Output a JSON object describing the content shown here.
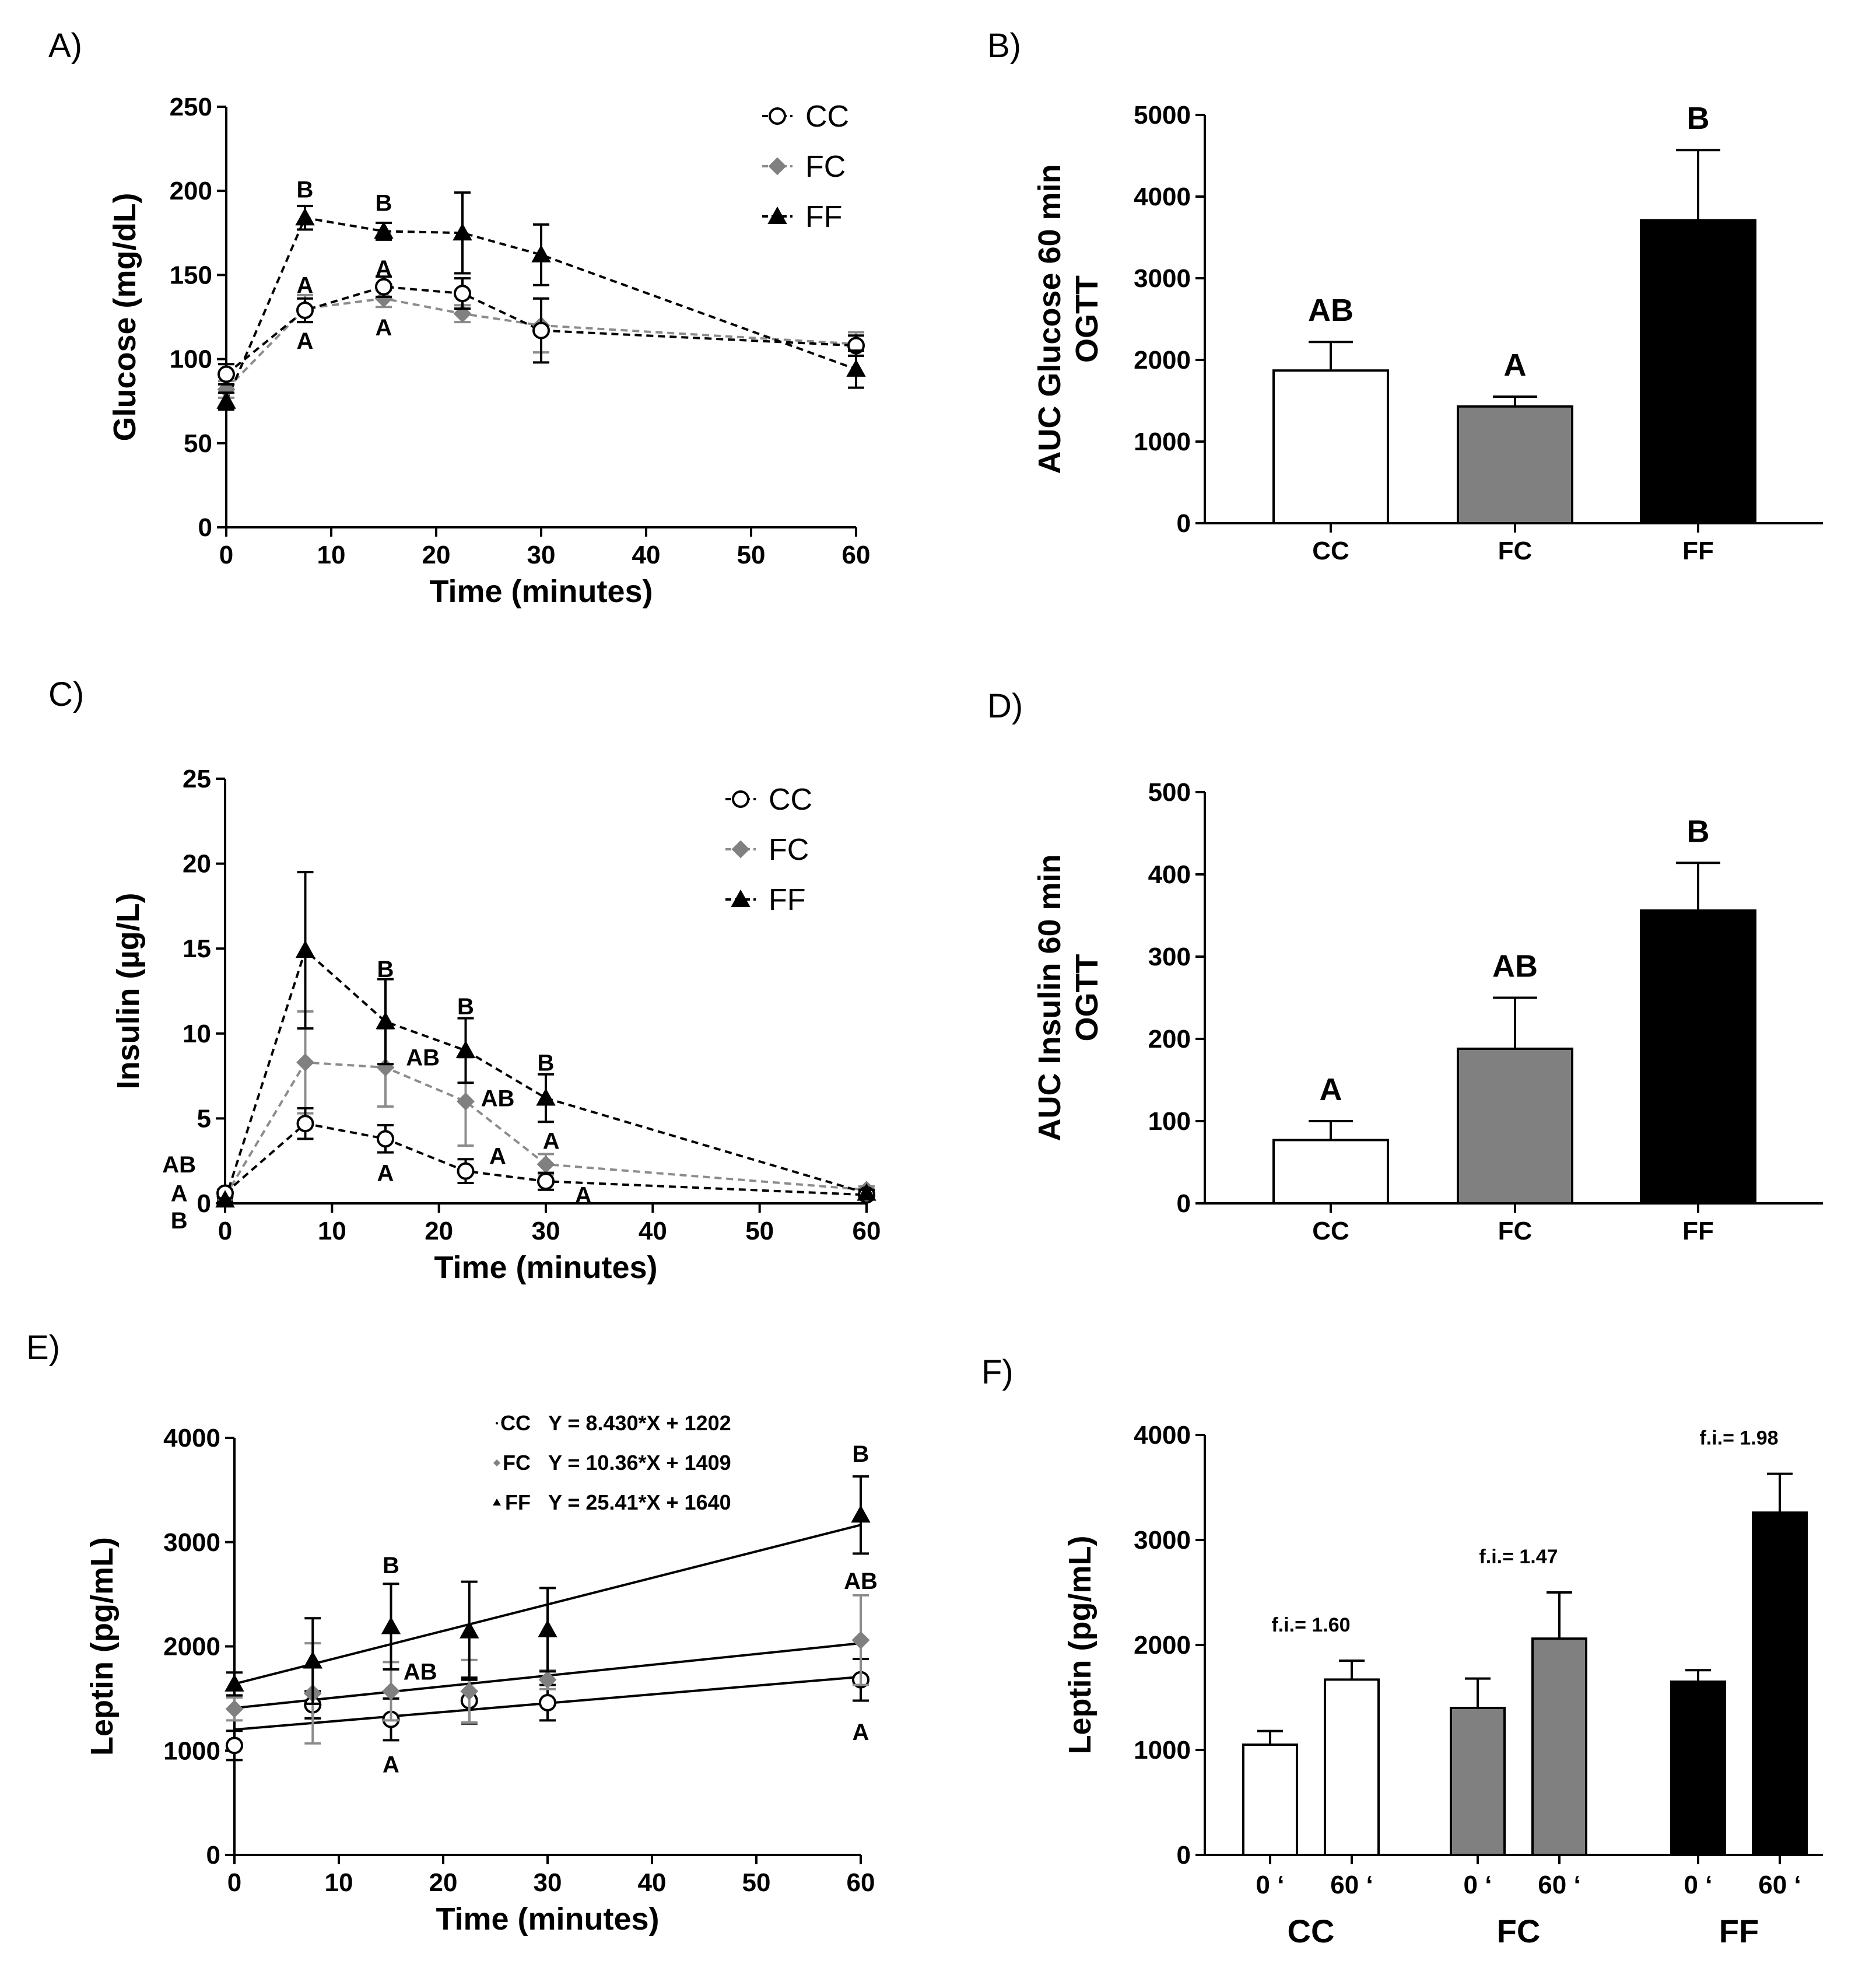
{
  "colors": {
    "CC": "#ffffff",
    "FC": "#808080",
    "FF": "#000000",
    "FC_line": "#8c8c8c"
  },
  "chart_data": [
    {
      "panel": "A)",
      "type": "line",
      "xlabel": "Time (minutes)",
      "ylabel": "Glucose (mg/dL)",
      "xlim": [
        0,
        60
      ],
      "ylim": [
        0,
        250
      ],
      "xticks": [
        0,
        10,
        20,
        30,
        40,
        50,
        60
      ],
      "yticks": [
        0,
        50,
        100,
        150,
        200,
        250
      ],
      "legend": [
        "CC",
        "FC",
        "FF"
      ],
      "x": [
        0,
        7.5,
        15,
        22.5,
        30,
        60
      ],
      "series": [
        {
          "name": "CC",
          "values": [
            91,
            129,
            143,
            139,
            117,
            108
          ],
          "errors": [
            6,
            7,
            6,
            9,
            19,
            6
          ]
        },
        {
          "name": "FC",
          "values": [
            82,
            130,
            136,
            127,
            120,
            109
          ],
          "errors": [
            5,
            8,
            5,
            5,
            16,
            7
          ]
        },
        {
          "name": "FF",
          "values": [
            75,
            184,
            176,
            175,
            162,
            94
          ],
          "errors": [
            5,
            7,
            5,
            24,
            18,
            11
          ]
        }
      ],
      "annotations": [
        {
          "text": "B",
          "x": 7.5,
          "y": 201
        },
        {
          "text": "B",
          "x": 15,
          "y": 193
        },
        {
          "text": "A",
          "x": 7.5,
          "y": 144
        },
        {
          "text": "A",
          "x": 15,
          "y": 154
        },
        {
          "text": "A",
          "x": 7.5,
          "y": 111
        },
        {
          "text": "A",
          "x": 15,
          "y": 119
        }
      ]
    },
    {
      "panel": "B)",
      "type": "bar",
      "ylabel": [
        "AUC Glucose 60 min",
        "OGTT"
      ],
      "categories": [
        "CC",
        "FC",
        "FF"
      ],
      "values": [
        1870,
        1430,
        3710
      ],
      "errors": [
        350,
        120,
        860
      ],
      "ylim": [
        0,
        5000
      ],
      "yticks": [
        0,
        1000,
        2000,
        3000,
        4000,
        5000
      ],
      "sig_letters": [
        "AB",
        "A",
        "B"
      ]
    },
    {
      "panel": "C)",
      "type": "line",
      "xlabel": "Time (minutes)",
      "ylabel": "Insulin (µg/L)",
      "xlim": [
        0,
        60
      ],
      "ylim": [
        0,
        25
      ],
      "xticks": [
        0,
        10,
        20,
        30,
        40,
        50,
        60
      ],
      "yticks": [
        0,
        5,
        10,
        15,
        20,
        25
      ],
      "legend": [
        "CC",
        "FC",
        "FF"
      ],
      "x": [
        0,
        7.5,
        15,
        22.5,
        30,
        60
      ],
      "series": [
        {
          "name": "CC",
          "values": [
            0.6,
            4.7,
            3.8,
            1.9,
            1.3,
            0.5
          ],
          "errors": [
            0.2,
            0.9,
            0.8,
            0.7,
            0.5,
            0.2
          ]
        },
        {
          "name": "FC",
          "values": [
            0.4,
            8.3,
            8.0,
            6.0,
            2.3,
            0.8
          ],
          "errors": [
            0.2,
            3.0,
            2.3,
            2.6,
            0.6,
            0.2
          ]
        },
        {
          "name": "FF",
          "values": [
            0.2,
            14.9,
            10.7,
            9.0,
            6.2,
            0.6
          ],
          "errors": [
            0.1,
            4.6,
            2.5,
            1.9,
            1.4,
            0.2
          ]
        }
      ],
      "annotations": [
        {
          "text": "B",
          "x": 15,
          "y": 13.8
        },
        {
          "text": "B",
          "x": 22.5,
          "y": 11.6
        },
        {
          "text": "B",
          "x": 30,
          "y": 8.3
        },
        {
          "text": "AB",
          "x": 18.5,
          "y": 8.6
        },
        {
          "text": "AB",
          "x": 25.5,
          "y": 6.2
        },
        {
          "text": "A",
          "x": 30.5,
          "y": 3.7
        },
        {
          "text": "A",
          "x": 25.5,
          "y": 2.8
        },
        {
          "text": "A",
          "x": 15,
          "y": 1.8
        },
        {
          "text": "A",
          "x": 33.5,
          "y": 0.5
        },
        {
          "text": "AB",
          "x": -4.3,
          "y": 2.3
        },
        {
          "text": "A",
          "x": -4.3,
          "y": 0.6
        },
        {
          "text": "B",
          "x": -4.3,
          "y": -1.0
        }
      ]
    },
    {
      "panel": "D)",
      "type": "bar",
      "ylabel": [
        "AUC Insulin 60 min",
        "OGTT"
      ],
      "categories": [
        "CC",
        "FC",
        "FF"
      ],
      "values": [
        77,
        188,
        356
      ],
      "errors": [
        23,
        62,
        58
      ],
      "ylim": [
        0,
        500
      ],
      "yticks": [
        0,
        100,
        200,
        300,
        400,
        500
      ],
      "sig_letters": [
        "A",
        "AB",
        "B"
      ]
    },
    {
      "panel": "E)",
      "type": "scatter",
      "xlabel": "Time (minutes)",
      "ylabel": "Leptin (pg/mL)",
      "xlim": [
        0,
        60
      ],
      "ylim": [
        0,
        4000
      ],
      "xticks": [
        0,
        10,
        20,
        30,
        40,
        50,
        60
      ],
      "yticks": [
        0,
        1000,
        2000,
        3000,
        4000
      ],
      "x": [
        0,
        7.5,
        15,
        22.5,
        30,
        60
      ],
      "series": [
        {
          "name": "CC",
          "values": [
            1050,
            1440,
            1300,
            1480,
            1460,
            1680
          ],
          "errors": [
            140,
            130,
            200,
            220,
            170,
            200
          ],
          "equation": "Y = 8.430*X + 1202",
          "slope": 8.43,
          "intercept": 1202
        },
        {
          "name": "FC",
          "values": [
            1400,
            1550,
            1570,
            1570,
            1680,
            2060
          ],
          "errors": [
            110,
            480,
            280,
            300,
            90,
            430
          ],
          "equation": "Y = 10.36*X + 1409",
          "slope": 10.36,
          "intercept": 1409
        },
        {
          "name": "FF",
          "values": [
            1640,
            1860,
            2190,
            2150,
            2160,
            3260
          ],
          "errors": [
            110,
            410,
            410,
            470,
            400,
            370
          ],
          "equation": "Y = 25.41*X + 1640",
          "slope": 25.41,
          "intercept": 1640
        }
      ],
      "annotations": [
        {
          "text": "B",
          "x": 15,
          "y": 2780
        },
        {
          "text": "AB",
          "x": 17.8,
          "y": 1760
        },
        {
          "text": "A",
          "x": 15,
          "y": 870
        },
        {
          "text": "B",
          "x": 60,
          "y": 3850
        },
        {
          "text": "AB",
          "x": 60,
          "y": 2630
        },
        {
          "text": "A",
          "x": 60,
          "y": 1180
        }
      ]
    },
    {
      "panel": "F)",
      "type": "bar",
      "ylabel": "Leptin  (pg/mL)",
      "groups": [
        "CC",
        "FC",
        "FF"
      ],
      "subcategories": [
        "0 ʻ",
        "60 ʻ"
      ],
      "values": [
        [
          1050,
          1670
        ],
        [
          1400,
          2060
        ],
        [
          1650,
          3260
        ]
      ],
      "errors": [
        [
          130,
          180
        ],
        [
          280,
          440
        ],
        [
          110,
          370
        ]
      ],
      "ylim": [
        0,
        4000
      ],
      "yticks": [
        0,
        1000,
        2000,
        3000,
        4000
      ],
      "fold_increase": [
        "f.i.= 1.60",
        "f.i.= 1.47",
        "f.i.= 1.98"
      ]
    }
  ]
}
